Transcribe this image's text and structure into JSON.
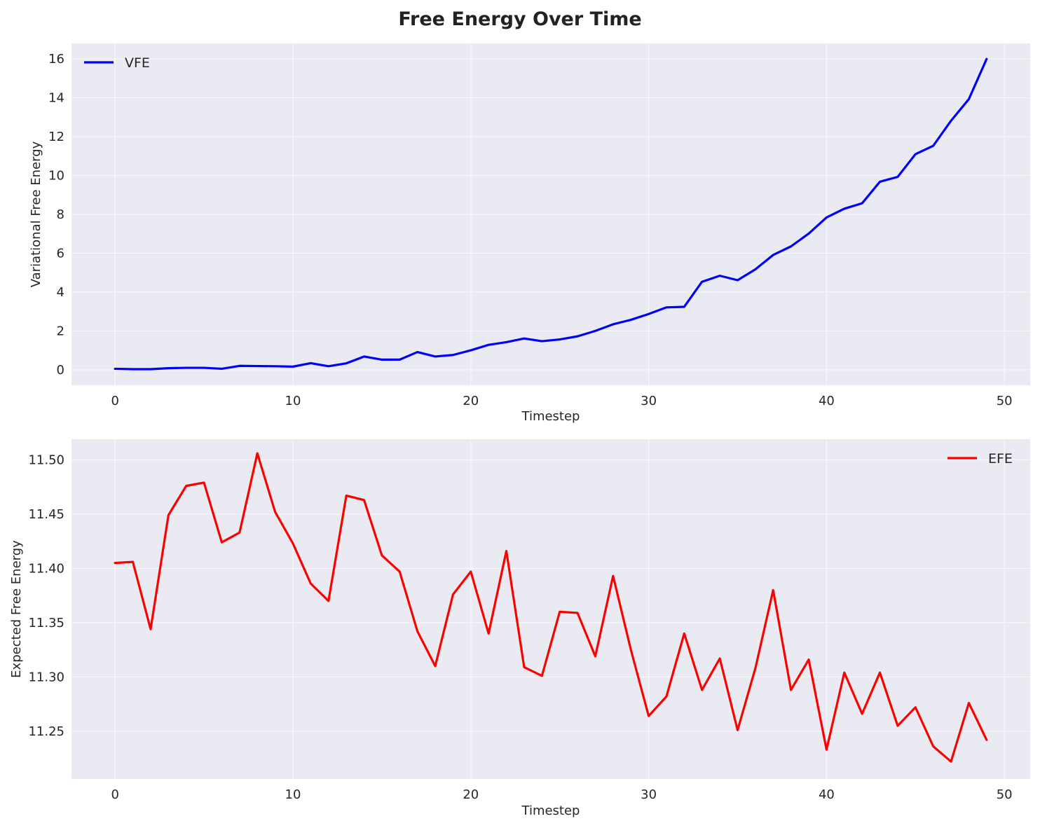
{
  "figure": {
    "title": "Free Energy Over Time",
    "plot_background": "#eaeaf2",
    "grid_color": "#ffffff"
  },
  "chart_data": [
    {
      "type": "line",
      "xlabel": "Timestep",
      "ylabel": "Variational Free Energy",
      "xlim": [
        -2.45,
        51.45
      ],
      "ylim": [
        -0.8,
        16.8
      ],
      "xticks": [
        0,
        10,
        20,
        30,
        40,
        50
      ],
      "yticks": [
        0,
        2,
        4,
        6,
        8,
        10,
        12,
        14,
        16
      ],
      "ytick_labels": [
        "0",
        "2",
        "4",
        "6",
        "8",
        "10",
        "12",
        "14",
        "16"
      ],
      "grid": true,
      "legend_position": "top-left",
      "series": [
        {
          "name": "VFE",
          "color": "#0000ff",
          "x": [
            0,
            1,
            2,
            3,
            4,
            5,
            6,
            7,
            8,
            9,
            10,
            11,
            12,
            13,
            14,
            15,
            16,
            17,
            18,
            19,
            20,
            21,
            22,
            23,
            24,
            25,
            26,
            27,
            28,
            29,
            30,
            31,
            32,
            33,
            34,
            35,
            36,
            37,
            38,
            39,
            40,
            41,
            42,
            43,
            44,
            45,
            46,
            47,
            48,
            49
          ],
          "values": [
            0.05,
            0.03,
            0.03,
            0.08,
            0.1,
            0.1,
            0.05,
            0.2,
            0.19,
            0.18,
            0.16,
            0.34,
            0.18,
            0.33,
            0.68,
            0.52,
            0.52,
            0.91,
            0.68,
            0.76,
            1.0,
            1.28,
            1.42,
            1.61,
            1.47,
            1.56,
            1.72,
            2.0,
            2.34,
            2.57,
            2.87,
            3.21,
            3.24,
            4.53,
            4.84,
            4.61,
            5.17,
            5.91,
            6.35,
            7.01,
            7.84,
            8.29,
            8.57,
            9.68,
            9.93,
            11.1,
            11.53,
            12.82,
            13.93,
            16.0
          ]
        }
      ]
    },
    {
      "type": "line",
      "xlabel": "Timestep",
      "ylabel": "Expected Free Energy",
      "xlim": [
        -2.45,
        51.45
      ],
      "ylim": [
        11.206,
        11.519
      ],
      "xticks": [
        0,
        10,
        20,
        30,
        40,
        50
      ],
      "yticks": [
        11.25,
        11.3,
        11.35,
        11.4,
        11.45,
        11.5
      ],
      "ytick_labels": [
        "11.25",
        "11.30",
        "11.35",
        "11.40",
        "11.45",
        "11.50"
      ],
      "grid": true,
      "legend_position": "top-right",
      "series": [
        {
          "name": "EFE",
          "color": "#ff0000",
          "x": [
            0,
            1,
            2,
            3,
            4,
            5,
            6,
            7,
            8,
            9,
            10,
            11,
            12,
            13,
            14,
            15,
            16,
            17,
            18,
            19,
            20,
            21,
            22,
            23,
            24,
            25,
            26,
            27,
            28,
            29,
            30,
            31,
            32,
            33,
            34,
            35,
            36,
            37,
            38,
            39,
            40,
            41,
            42,
            43,
            44,
            45,
            46,
            47,
            48,
            49
          ],
          "values": [
            11.405,
            11.406,
            11.344,
            11.449,
            11.476,
            11.479,
            11.424,
            11.433,
            11.506,
            11.452,
            11.423,
            11.386,
            11.37,
            11.467,
            11.463,
            11.412,
            11.397,
            11.342,
            11.31,
            11.376,
            11.397,
            11.34,
            11.416,
            11.309,
            11.301,
            11.36,
            11.359,
            11.319,
            11.393,
            11.325,
            11.264,
            11.282,
            11.34,
            11.288,
            11.317,
            11.251,
            11.308,
            11.38,
            11.288,
            11.316,
            11.233,
            11.304,
            11.266,
            11.304,
            11.255,
            11.272,
            11.236,
            11.222,
            11.276,
            11.242
          ]
        }
      ]
    }
  ]
}
